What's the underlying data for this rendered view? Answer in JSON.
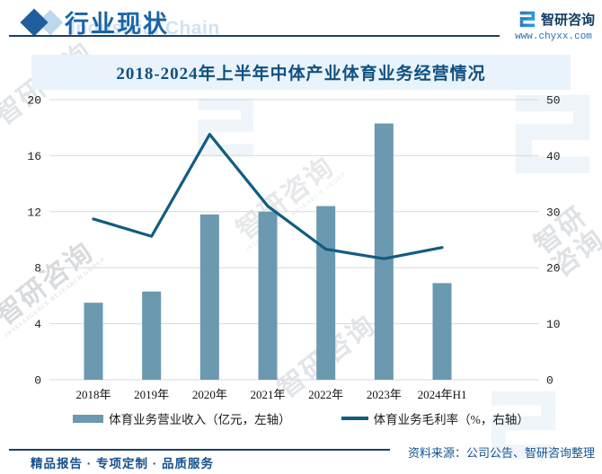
{
  "header": {
    "title": "行业现状",
    "title_watermark": "Industrial Chain",
    "brand": {
      "name": "智研咨询",
      "website": "www.chyxx.com"
    }
  },
  "chart_data": {
    "type": "bar",
    "title": "2018-2024年上半年中体产业体育业务经营情况",
    "categories": [
      "2018年",
      "2019年",
      "2020年",
      "2021年",
      "2022年",
      "2023年",
      "2024年H1"
    ],
    "series": [
      {
        "name": "体育业务营业收入（亿元，左轴）",
        "type": "bar",
        "axis": "left",
        "color": "#6a99b0",
        "values": [
          5.5,
          6.3,
          11.8,
          12.0,
          12.4,
          18.3,
          6.9
        ]
      },
      {
        "name": "体育业务毛利率（%，右轴）",
        "type": "line",
        "axis": "right",
        "color": "#115d80",
        "values": [
          28.7,
          25.6,
          43.8,
          31.0,
          23.3,
          21.6,
          23.6
        ]
      }
    ],
    "left_axis": {
      "min": 0,
      "max": 20,
      "step": 4
    },
    "right_axis": {
      "min": 0,
      "max": 50,
      "step": 10
    },
    "grid": true,
    "legend_position": "bottom"
  },
  "footer": {
    "source": "资料来源：公司公告、智研咨询整理",
    "tagline": "精品报告 · 专项定制 · 品质服务"
  },
  "watermark": {
    "cn": "智研咨询",
    "en": "INTELLIGENCE RESEARCH GROUP"
  },
  "colors": {
    "bar": "#6a99b0",
    "line": "#115d80",
    "header_blue": "#1a64a8",
    "navy": "#1c3e66",
    "title_band": "#e9f3fb",
    "footer_text": "#16518f"
  }
}
